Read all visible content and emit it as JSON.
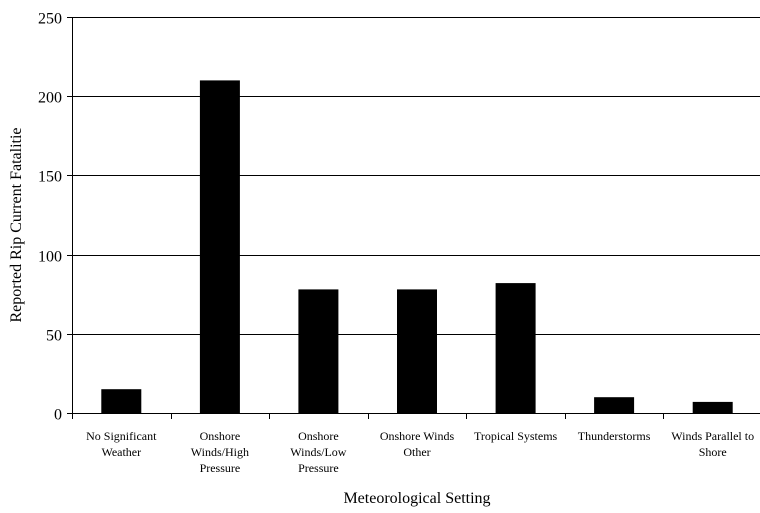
{
  "chart_data": {
    "type": "bar",
    "title": "",
    "xlabel": "Meteorological Setting",
    "ylabel": "Reported Rip Current Fatalitie",
    "ylim": [
      0,
      250
    ],
    "yticks": [
      0,
      50,
      100,
      150,
      200,
      250
    ],
    "grid": "horizontal major gridlines",
    "legend": "none",
    "bar_color": "#000000",
    "categories": [
      [
        "No Significant",
        "Weather"
      ],
      [
        "Onshore",
        "Winds/High",
        "Pressure"
      ],
      [
        "Onshore",
        "Winds/Low",
        "Pressure"
      ],
      [
        "Onshore Winds",
        "Other"
      ],
      [
        "Tropical Systems"
      ],
      [
        "Thunderstorms"
      ],
      [
        "Winds Parallel to",
        "Shore"
      ]
    ],
    "values": [
      15,
      210,
      78,
      78,
      82,
      10,
      7
    ]
  }
}
